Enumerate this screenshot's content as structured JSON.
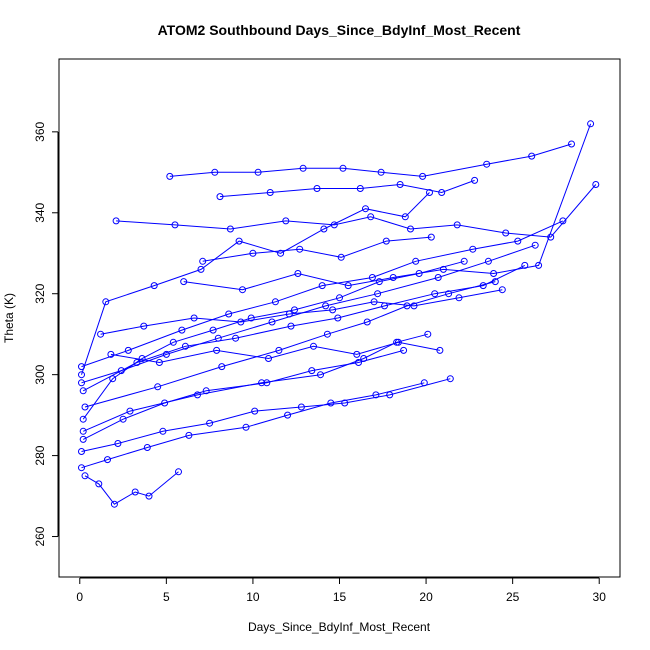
{
  "chart_data": {
    "type": "line",
    "title": "ATOM2 Southbound Days_Since_BdyInf_Most_Recent",
    "xlabel": "Days_Since_BdyInf_Most_Recent",
    "ylabel": "Theta (K)",
    "xlim": [
      -1.2,
      31.2
    ],
    "ylim": [
      250,
      378
    ],
    "x_ticks": [
      0,
      5,
      10,
      15,
      20,
      25,
      30
    ],
    "y_ticks": [
      260,
      280,
      300,
      320,
      340,
      360
    ],
    "grid": false,
    "legend": "none",
    "marker": "open-circle",
    "series_color": "#0000ff",
    "series": [
      {
        "x": [
          0.1,
          1.5,
          4.3,
          7.0,
          9.2,
          11.6,
          14.1,
          16.5,
          18.8,
          20.2
        ],
        "y": [
          300,
          318,
          322,
          326,
          333,
          330,
          336,
          341,
          339,
          345
        ]
      },
      {
        "x": [
          0.2,
          1.9,
          3.6,
          5.4,
          7.7,
          9.9,
          12.4,
          15.0,
          17.3,
          19.6,
          22.2
        ],
        "y": [
          289,
          299,
          304,
          308,
          311,
          314,
          316,
          319,
          323,
          325,
          328
        ]
      },
      {
        "x": [
          0.1,
          2.2,
          4.8,
          7.5,
          10.1,
          12.8,
          15.3,
          17.9,
          21.4
        ],
        "y": [
          281,
          283,
          286,
          288,
          291,
          292,
          293,
          295,
          299
        ]
      },
      {
        "x": [
          0.3,
          1.1,
          2.0,
          3.2,
          4.0,
          5.7
        ],
        "y": [
          275,
          273,
          268,
          271,
          270,
          276
        ]
      },
      {
        "x": [
          5.2,
          7.8,
          10.3,
          12.9,
          15.2,
          17.4,
          19.8,
          23.5,
          26.1,
          28.4
        ],
        "y": [
          349,
          350,
          350,
          351,
          351,
          350,
          349,
          352,
          354,
          357
        ]
      },
      {
        "x": [
          2.1,
          5.5,
          8.7,
          11.9,
          14.7,
          16.8,
          19.1,
          21.8,
          24.6,
          27.2,
          29.8
        ],
        "y": [
          338,
          337,
          336,
          338,
          337,
          339,
          336,
          337,
          335,
          334,
          347
        ]
      },
      {
        "x": [
          0.2,
          3.3,
          6.1,
          9.0,
          12.2,
          14.9,
          17.6,
          20.5,
          23.3,
          25.7
        ],
        "y": [
          296,
          303,
          307,
          309,
          312,
          314,
          317,
          320,
          322,
          327
        ]
      },
      {
        "x": [
          0.1,
          2.8,
          5.9,
          8.6,
          11.3,
          14.0,
          16.9,
          19.4,
          22.7,
          25.3,
          27.9
        ],
        "y": [
          302,
          306,
          311,
          315,
          318,
          322,
          324,
          328,
          331,
          333,
          338
        ]
      },
      {
        "x": [
          0.2,
          2.5,
          4.9,
          7.3,
          10.8,
          13.4,
          16.1,
          18.7
        ],
        "y": [
          284,
          289,
          293,
          296,
          298,
          301,
          303,
          306
        ]
      },
      {
        "x": [
          0.1,
          1.6,
          3.9,
          6.3,
          9.6,
          12.0,
          14.5,
          17.1,
          19.9
        ],
        "y": [
          277,
          279,
          282,
          285,
          287,
          290,
          293,
          295,
          298
        ]
      },
      {
        "x": [
          6.0,
          9.4,
          12.6,
          15.5,
          18.1,
          21.0,
          23.9,
          26.5,
          29.5
        ],
        "y": [
          323,
          321,
          325,
          322,
          324,
          326,
          325,
          327,
          362
        ]
      },
      {
        "x": [
          8.1,
          11.0,
          13.7,
          16.2,
          18.5,
          20.9,
          22.8
        ],
        "y": [
          344,
          345,
          346,
          346,
          347,
          345,
          348
        ]
      },
      {
        "x": [
          0.3,
          4.5,
          8.2,
          11.5,
          14.3,
          16.6,
          18.9,
          21.3,
          24.0
        ],
        "y": [
          292,
          297,
          302,
          306,
          310,
          313,
          317,
          320,
          323
        ]
      },
      {
        "x": [
          1.2,
          3.7,
          6.6,
          9.3,
          12.1,
          14.6,
          17.0,
          19.3,
          21.9,
          24.4
        ],
        "y": [
          310,
          312,
          314,
          313,
          315,
          316,
          318,
          317,
          319,
          321
        ]
      },
      {
        "x": [
          0.2,
          2.9,
          6.8,
          10.5,
          13.9,
          16.4,
          18.3,
          20.1
        ],
        "y": [
          286,
          291,
          295,
          298,
          300,
          304,
          308,
          310
        ]
      },
      {
        "x": [
          7.1,
          10.0,
          12.7,
          15.1,
          17.7,
          20.3
        ],
        "y": [
          328,
          330,
          331,
          329,
          333,
          334
        ]
      },
      {
        "x": [
          0.1,
          2.4,
          5.0,
          8.0,
          11.1,
          14.2,
          17.2,
          20.7,
          23.6,
          26.3
        ],
        "y": [
          298,
          301,
          305,
          309,
          313,
          317,
          320,
          324,
          328,
          332
        ]
      },
      {
        "x": [
          1.8,
          4.6,
          7.9,
          10.9,
          13.5,
          16.0,
          18.4,
          20.8
        ],
        "y": [
          305,
          303,
          306,
          304,
          307,
          305,
          308,
          306
        ]
      }
    ]
  }
}
